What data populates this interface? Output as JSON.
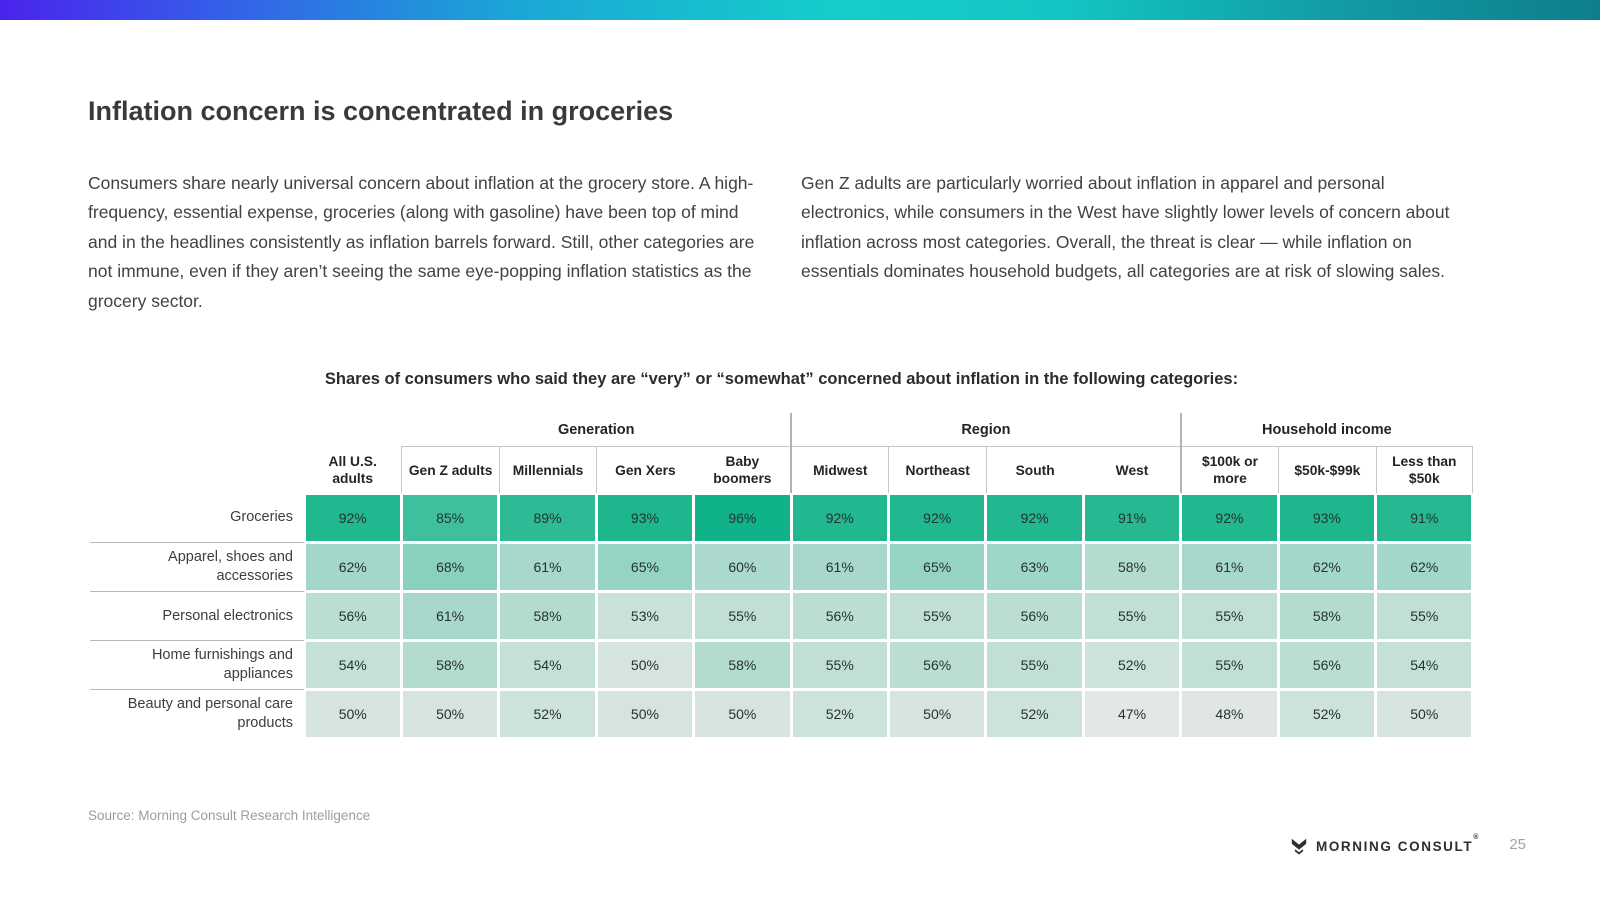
{
  "slide": {
    "title": "Inflation concern is concentrated in groceries",
    "accent_gradient": [
      "#4a23ed",
      "#15cdca",
      "#0e7e8c"
    ]
  },
  "paragraphs": {
    "left": "Consumers share nearly universal concern about inflation at the grocery store. A high-frequency, essential expense, groceries (along with gasoline) have been top of mind and in the headlines consistently as inflation barrels forward. Still, other categories are not immune, even if they aren’t seeing the same eye-popping inflation statistics as the grocery sector.",
    "right": "Gen Z adults are particularly worried about inflation in apparel and personal electronics, while consumers in the West have slightly lower levels of concern about inflation across most categories. Overall, the threat is clear — while inflation on essentials dominates household budgets, all categories are at risk of slowing sales."
  },
  "chart_data": {
    "type": "heatmap",
    "title": "Shares of consumers who said they are “very” or “somewhat” concerned about inflation in the following categories:",
    "column_groups": [
      {
        "label": "",
        "columns": [
          "All U.S. adults"
        ]
      },
      {
        "label": "Generation",
        "columns": [
          "Gen Z adults",
          "Millennials",
          "Gen Xers",
          "Baby boomers"
        ]
      },
      {
        "label": "Region",
        "columns": [
          "Midwest",
          "Northeast",
          "South",
          "West"
        ]
      },
      {
        "label": "Household income",
        "columns": [
          "$100k or more",
          "$50k-$99k",
          "Less than $50k"
        ]
      }
    ],
    "rows": [
      {
        "label": "Groceries",
        "values": [
          92,
          85,
          89,
          93,
          96,
          92,
          92,
          92,
          91,
          92,
          93,
          91
        ]
      },
      {
        "label": "Apparel, shoes and accessories",
        "values": [
          62,
          68,
          61,
          65,
          60,
          61,
          65,
          63,
          58,
          61,
          62,
          62
        ]
      },
      {
        "label": "Personal electronics",
        "values": [
          56,
          61,
          58,
          53,
          55,
          56,
          55,
          56,
          55,
          55,
          58,
          55
        ]
      },
      {
        "label": "Home furnishings and appliances",
        "values": [
          54,
          58,
          54,
          50,
          58,
          55,
          56,
          55,
          52,
          55,
          56,
          54
        ]
      },
      {
        "label": "Beauty and personal care products",
        "values": [
          50,
          50,
          52,
          50,
          50,
          52,
          50,
          52,
          47,
          48,
          52,
          50
        ]
      }
    ],
    "value_format": "percent",
    "colorscale": {
      "min_value": 47,
      "max_value": 96,
      "min_color": "#e3e7e5",
      "max_color": "#10b389"
    },
    "legend": "none",
    "grid": "white-gutters"
  },
  "footer": {
    "source": "Source: Morning Consult Research Intelligence",
    "brand": "MORNING CONSULT",
    "trademark": "®",
    "page_number": "25"
  }
}
